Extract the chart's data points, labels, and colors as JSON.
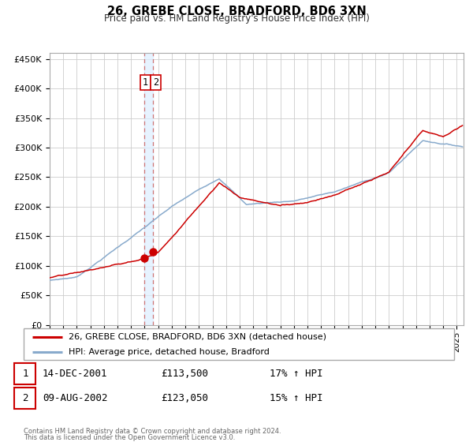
{
  "title": "26, GREBE CLOSE, BRADFORD, BD6 3XN",
  "subtitle": "Price paid vs. HM Land Registry's House Price Index (HPI)",
  "ylabel_ticks": [
    "£0",
    "£50K",
    "£100K",
    "£150K",
    "£200K",
    "£250K",
    "£300K",
    "£350K",
    "£400K",
    "£450K"
  ],
  "ytick_vals": [
    0,
    50000,
    100000,
    150000,
    200000,
    250000,
    300000,
    350000,
    400000,
    450000
  ],
  "ylim": [
    0,
    460000
  ],
  "xlim_start": 1995.0,
  "xlim_end": 2025.5,
  "red_line_color": "#cc0000",
  "blue_line_color": "#88aacc",
  "marker_color": "#cc0000",
  "vline_color": "#cc6666",
  "shade_color": "#ddeeff",
  "sale1_x": 2001.96,
  "sale1_y": 113500,
  "sale2_x": 2002.61,
  "sale2_y": 123050,
  "legend_label_red": "26, GREBE CLOSE, BRADFORD, BD6 3XN (detached house)",
  "legend_label_blue": "HPI: Average price, detached house, Bradford",
  "table_row1": [
    "1",
    "14-DEC-2001",
    "£113,500",
    "17% ↑ HPI"
  ],
  "table_row2": [
    "2",
    "09-AUG-2002",
    "£123,050",
    "15% ↑ HPI"
  ],
  "footer_line1": "Contains HM Land Registry data © Crown copyright and database right 2024.",
  "footer_line2": "This data is licensed under the Open Government Licence v3.0.",
  "background_color": "#ffffff",
  "grid_color": "#cccccc"
}
